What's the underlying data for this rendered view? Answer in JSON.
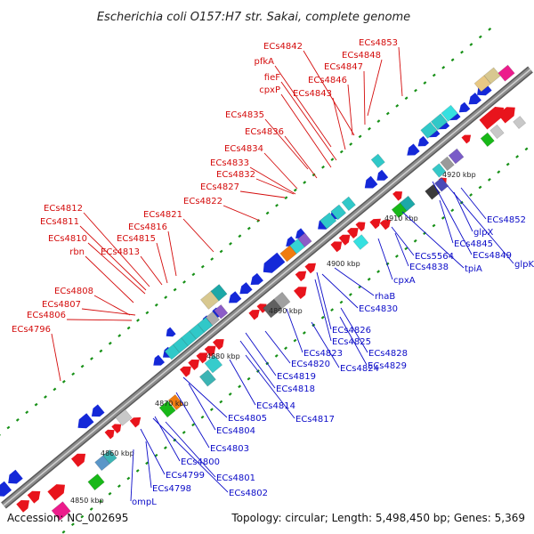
{
  "header": {
    "title": "Escherichia coli O157:H7 str. Sakai, complete genome"
  },
  "footer": {
    "accession": "Accession: NC_002695",
    "topology": "Topology: circular; Length: 5,498,450 bp; Genes: 5,369"
  },
  "colors": {
    "forward": "#e8141c",
    "reverse": "#1428d8",
    "backbone": "#8c8c8c",
    "tick_dot": "#169016"
  },
  "ticks": [
    "4850 kbp",
    "4860 kbp",
    "4870 kbp",
    "4880 kbp",
    "4890 kbp",
    "4900 kbp",
    "4910 kbp",
    "4920 kbp"
  ],
  "labels_top": [
    "ECs4853",
    "ECs4848",
    "ECs4842",
    "ECs4847",
    "pfkA",
    "ECs4846",
    "fieF",
    "cpxP",
    "ECs4843",
    "ECs4835",
    "ECs4836",
    "ECs4834",
    "ECs4833",
    "ECs4832",
    "ECs4827",
    "ECs4822",
    "ECs4812",
    "ECs4821",
    "ECs4811",
    "ECs4816",
    "ECs4810",
    "ECs4815",
    "rbn",
    "ECs4813",
    "ECs4808",
    "ECs4807",
    "ECs4806",
    "ECs4796"
  ],
  "labels_bottom": [
    "ECs4852",
    "glpX",
    "ECs4845",
    "ECs4849",
    "glpK",
    "ECs5564",
    "tpiA",
    "ECs4838",
    "cpxA",
    "rhaB",
    "ECs4830",
    "ECs4826",
    "ECs4825",
    "ECs4828",
    "ECs4829",
    "ECs4823",
    "ECs4824",
    "ECs4820",
    "ECs4819",
    "ECs4818",
    "ECs4814",
    "ECs4817",
    "ECs4805",
    "ECs4804",
    "ECs4803",
    "ECs4800",
    "ECs4799",
    "ECs4801",
    "ECs4798",
    "ECs4802",
    "ompL"
  ]
}
